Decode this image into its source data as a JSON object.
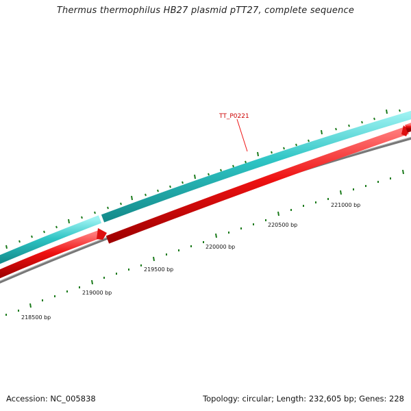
{
  "title": "Thermus thermophilus HB27 plasmid pTT27, complete sequence",
  "footer": {
    "accession": "Accession: NC_005838",
    "summary": "Topology: circular; Length: 232,605 bp; Genes: 228"
  },
  "gene_label": "TT_P0221",
  "bp_labels": [
    "218500 bp",
    "219000 bp",
    "219500 bp",
    "220000 bp",
    "220500 bp",
    "221000 bp"
  ],
  "colors": {
    "forward_strand": "#2ec4c4",
    "reverse_strand": "#ee1111",
    "backbone": "#888888",
    "ticks": "#1a7a1a",
    "gene_label": "#cc0000"
  }
}
